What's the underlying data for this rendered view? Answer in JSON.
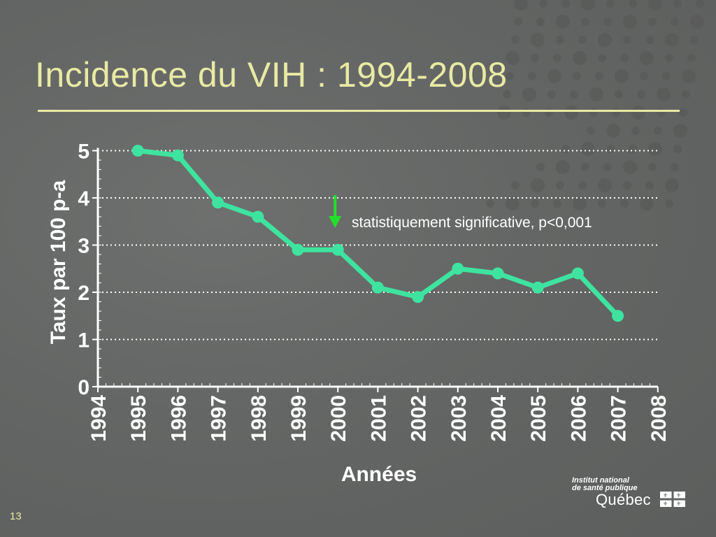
{
  "slide": {
    "title": "Incidence du VIH : 1994-2008",
    "number": "13",
    "colors": {
      "background": "#646665",
      "title": "#e8eaa4",
      "series": "#3fe3a0",
      "annotation_arrow": "#22e02a",
      "text": "#ffffff"
    }
  },
  "logo": {
    "line1": "Institut national",
    "line2": "de santé publique",
    "name": "Québec"
  },
  "chart_data": {
    "type": "line",
    "xlabel": "Années",
    "ylabel": "Taux par 100 p-a",
    "x": [
      "1994",
      "1995",
      "1996",
      "1997",
      "1998",
      "1999",
      "2000",
      "2001",
      "2002",
      "2003",
      "2004",
      "2005",
      "2006",
      "2007",
      "2008"
    ],
    "yticks": [
      "0",
      "1",
      "2",
      "3",
      "4",
      "5"
    ],
    "ylim": [
      0,
      5
    ],
    "grid": "dotted horizontal",
    "series": [
      {
        "x": [
          "1995",
          "1996",
          "1997",
          "1998",
          "1999",
          "2000",
          "2001",
          "2002",
          "2003",
          "2004",
          "2005",
          "2006",
          "2007"
        ],
        "values": [
          5.0,
          4.9,
          3.9,
          3.6,
          2.9,
          2.9,
          2.1,
          1.9,
          2.5,
          2.4,
          2.1,
          2.4,
          1.5
        ]
      }
    ],
    "annotation": {
      "text": "statistiquement significative, p<0,001",
      "x": "2000",
      "marker": "down-arrow"
    }
  }
}
